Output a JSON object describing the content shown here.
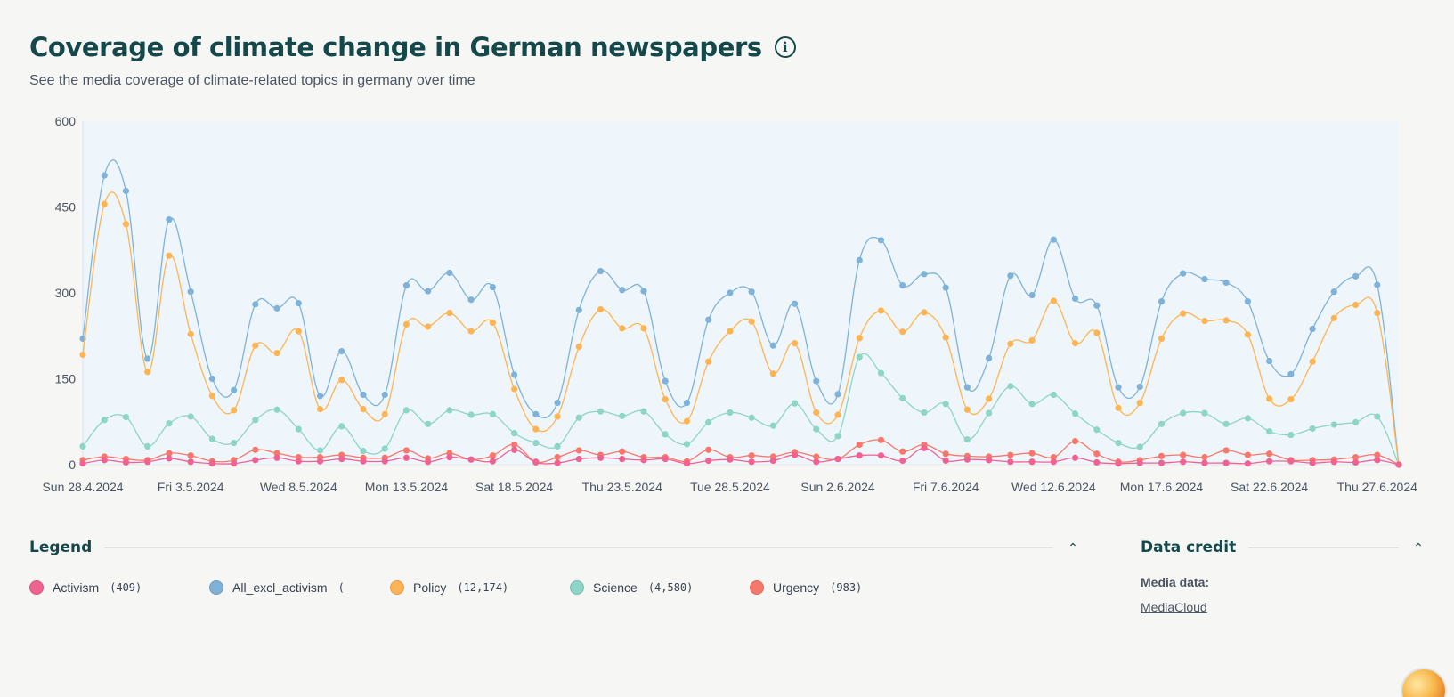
{
  "header": {
    "title": "Coverage of climate change in German newspapers",
    "info_icon": "info-icon",
    "info_glyph": "i",
    "subtitle": "See the media coverage of climate-related topics in germany over time"
  },
  "legend": {
    "title": "Legend",
    "collapse_icon": "chevron-up-icon",
    "items": [
      {
        "label": "Activism",
        "count": "(409)",
        "color": "#f06292"
      },
      {
        "label": "All_excl_activism",
        "count": "(",
        "color": "#7fb2d8"
      },
      {
        "label": "Policy",
        "count": "(12,174)",
        "color": "#ffb454"
      },
      {
        "label": "Science",
        "count": "(4,580)",
        "color": "#8dd5c6"
      },
      {
        "label": "Urgency",
        "count": "(983)",
        "color": "#f7786b"
      }
    ]
  },
  "credit": {
    "title": "Data credit",
    "collapse_icon": "chevron-up-icon",
    "label": "Media data:",
    "link_text": "MediaCloud"
  },
  "avatar": {
    "icon": "avatar-icon"
  },
  "chart_data": {
    "type": "line",
    "title": "",
    "xlabel": "",
    "ylabel": "",
    "ylim": [
      0,
      600
    ],
    "yticks": [
      0,
      150,
      300,
      450,
      600
    ],
    "x_tick_labels": [
      "Sun 28.4.2024",
      "Fri 3.5.2024",
      "Wed 8.5.2024",
      "Mon 13.5.2024",
      "Sat 18.5.2024",
      "Thu 23.5.2024",
      "Tue 28.5.2024",
      "Sun 2.6.2024",
      "Fri 7.6.2024",
      "Wed 12.6.2024",
      "Mon 17.6.2024",
      "Sat 22.6.2024",
      "Thu 27.6.2024"
    ],
    "x_start": "2024-04-28",
    "x_end": "2024-06-28",
    "grid": false,
    "plot_background": "#eef6fb",
    "series": [
      {
        "name": "All_excl_activism",
        "color": "#7fb2d8",
        "values": [
          220,
          505,
          478,
          185,
          428,
          302,
          150,
          130,
          280,
          273,
          282,
          120,
          198,
          122,
          122,
          313,
          303,
          335,
          288,
          310,
          157,
          88,
          108,
          270,
          338,
          305,
          303,
          146,
          108,
          253,
          300,
          302,
          208,
          281,
          146,
          123,
          357,
          392,
          313,
          333,
          309,
          135,
          186,
          330,
          296,
          393,
          290,
          278,
          135,
          136,
          285,
          334,
          324,
          318,
          285,
          181,
          158,
          237,
          302,
          329,
          314,
          0
        ]
      },
      {
        "name": "Policy",
        "color": "#ffb454",
        "values": [
          192,
          455,
          420,
          162,
          365,
          228,
          120,
          95,
          208,
          195,
          233,
          97,
          148,
          97,
          88,
          245,
          241,
          265,
          233,
          248,
          132,
          62,
          84,
          206,
          271,
          238,
          238,
          114,
          76,
          180,
          233,
          250,
          159,
          212,
          91,
          87,
          221,
          269,
          232,
          266,
          222,
          96,
          115,
          211,
          217,
          286,
          212,
          230,
          99,
          108,
          220,
          264,
          251,
          252,
          227,
          115,
          114,
          180,
          256,
          279,
          265,
          0
        ]
      },
      {
        "name": "Science",
        "color": "#8dd5c6",
        "values": [
          32,
          78,
          83,
          32,
          72,
          84,
          45,
          38,
          78,
          96,
          62,
          25,
          67,
          24,
          28,
          95,
          71,
          95,
          87,
          88,
          55,
          38,
          32,
          82,
          93,
          85,
          93,
          53,
          36,
          74,
          91,
          82,
          68,
          107,
          62,
          50,
          188,
          160,
          116,
          91,
          106,
          44,
          90,
          137,
          106,
          122,
          89,
          61,
          38,
          31,
          71,
          90,
          90,
          71,
          81,
          58,
          52,
          63,
          70,
          74,
          84,
          0
        ]
      },
      {
        "name": "Urgency",
        "color": "#f7786b",
        "values": [
          8,
          14,
          10,
          8,
          20,
          16,
          6,
          8,
          26,
          20,
          13,
          13,
          17,
          12,
          12,
          25,
          11,
          20,
          9,
          16,
          35,
          5,
          13,
          25,
          17,
          23,
          13,
          13,
          6,
          26,
          13,
          16,
          14,
          22,
          14,
          10,
          35,
          43,
          23,
          35,
          19,
          15,
          14,
          17,
          20,
          13,
          41,
          19,
          5,
          8,
          15,
          17,
          13,
          25,
          17,
          19,
          8,
          8,
          9,
          13,
          17,
          0
        ]
      },
      {
        "name": "Activism",
        "color": "#f06292",
        "values": [
          2,
          8,
          4,
          5,
          11,
          5,
          2,
          2,
          8,
          12,
          6,
          6,
          10,
          6,
          6,
          12,
          5,
          13,
          9,
          6,
          26,
          4,
          3,
          10,
          12,
          10,
          8,
          10,
          2,
          7,
          9,
          5,
          7,
          17,
          5,
          10,
          16,
          16,
          7,
          29,
          7,
          9,
          8,
          5,
          5,
          5,
          12,
          4,
          2,
          3,
          3,
          5,
          3,
          3,
          2,
          6,
          6,
          3,
          5,
          4,
          8,
          0
        ]
      }
    ]
  }
}
